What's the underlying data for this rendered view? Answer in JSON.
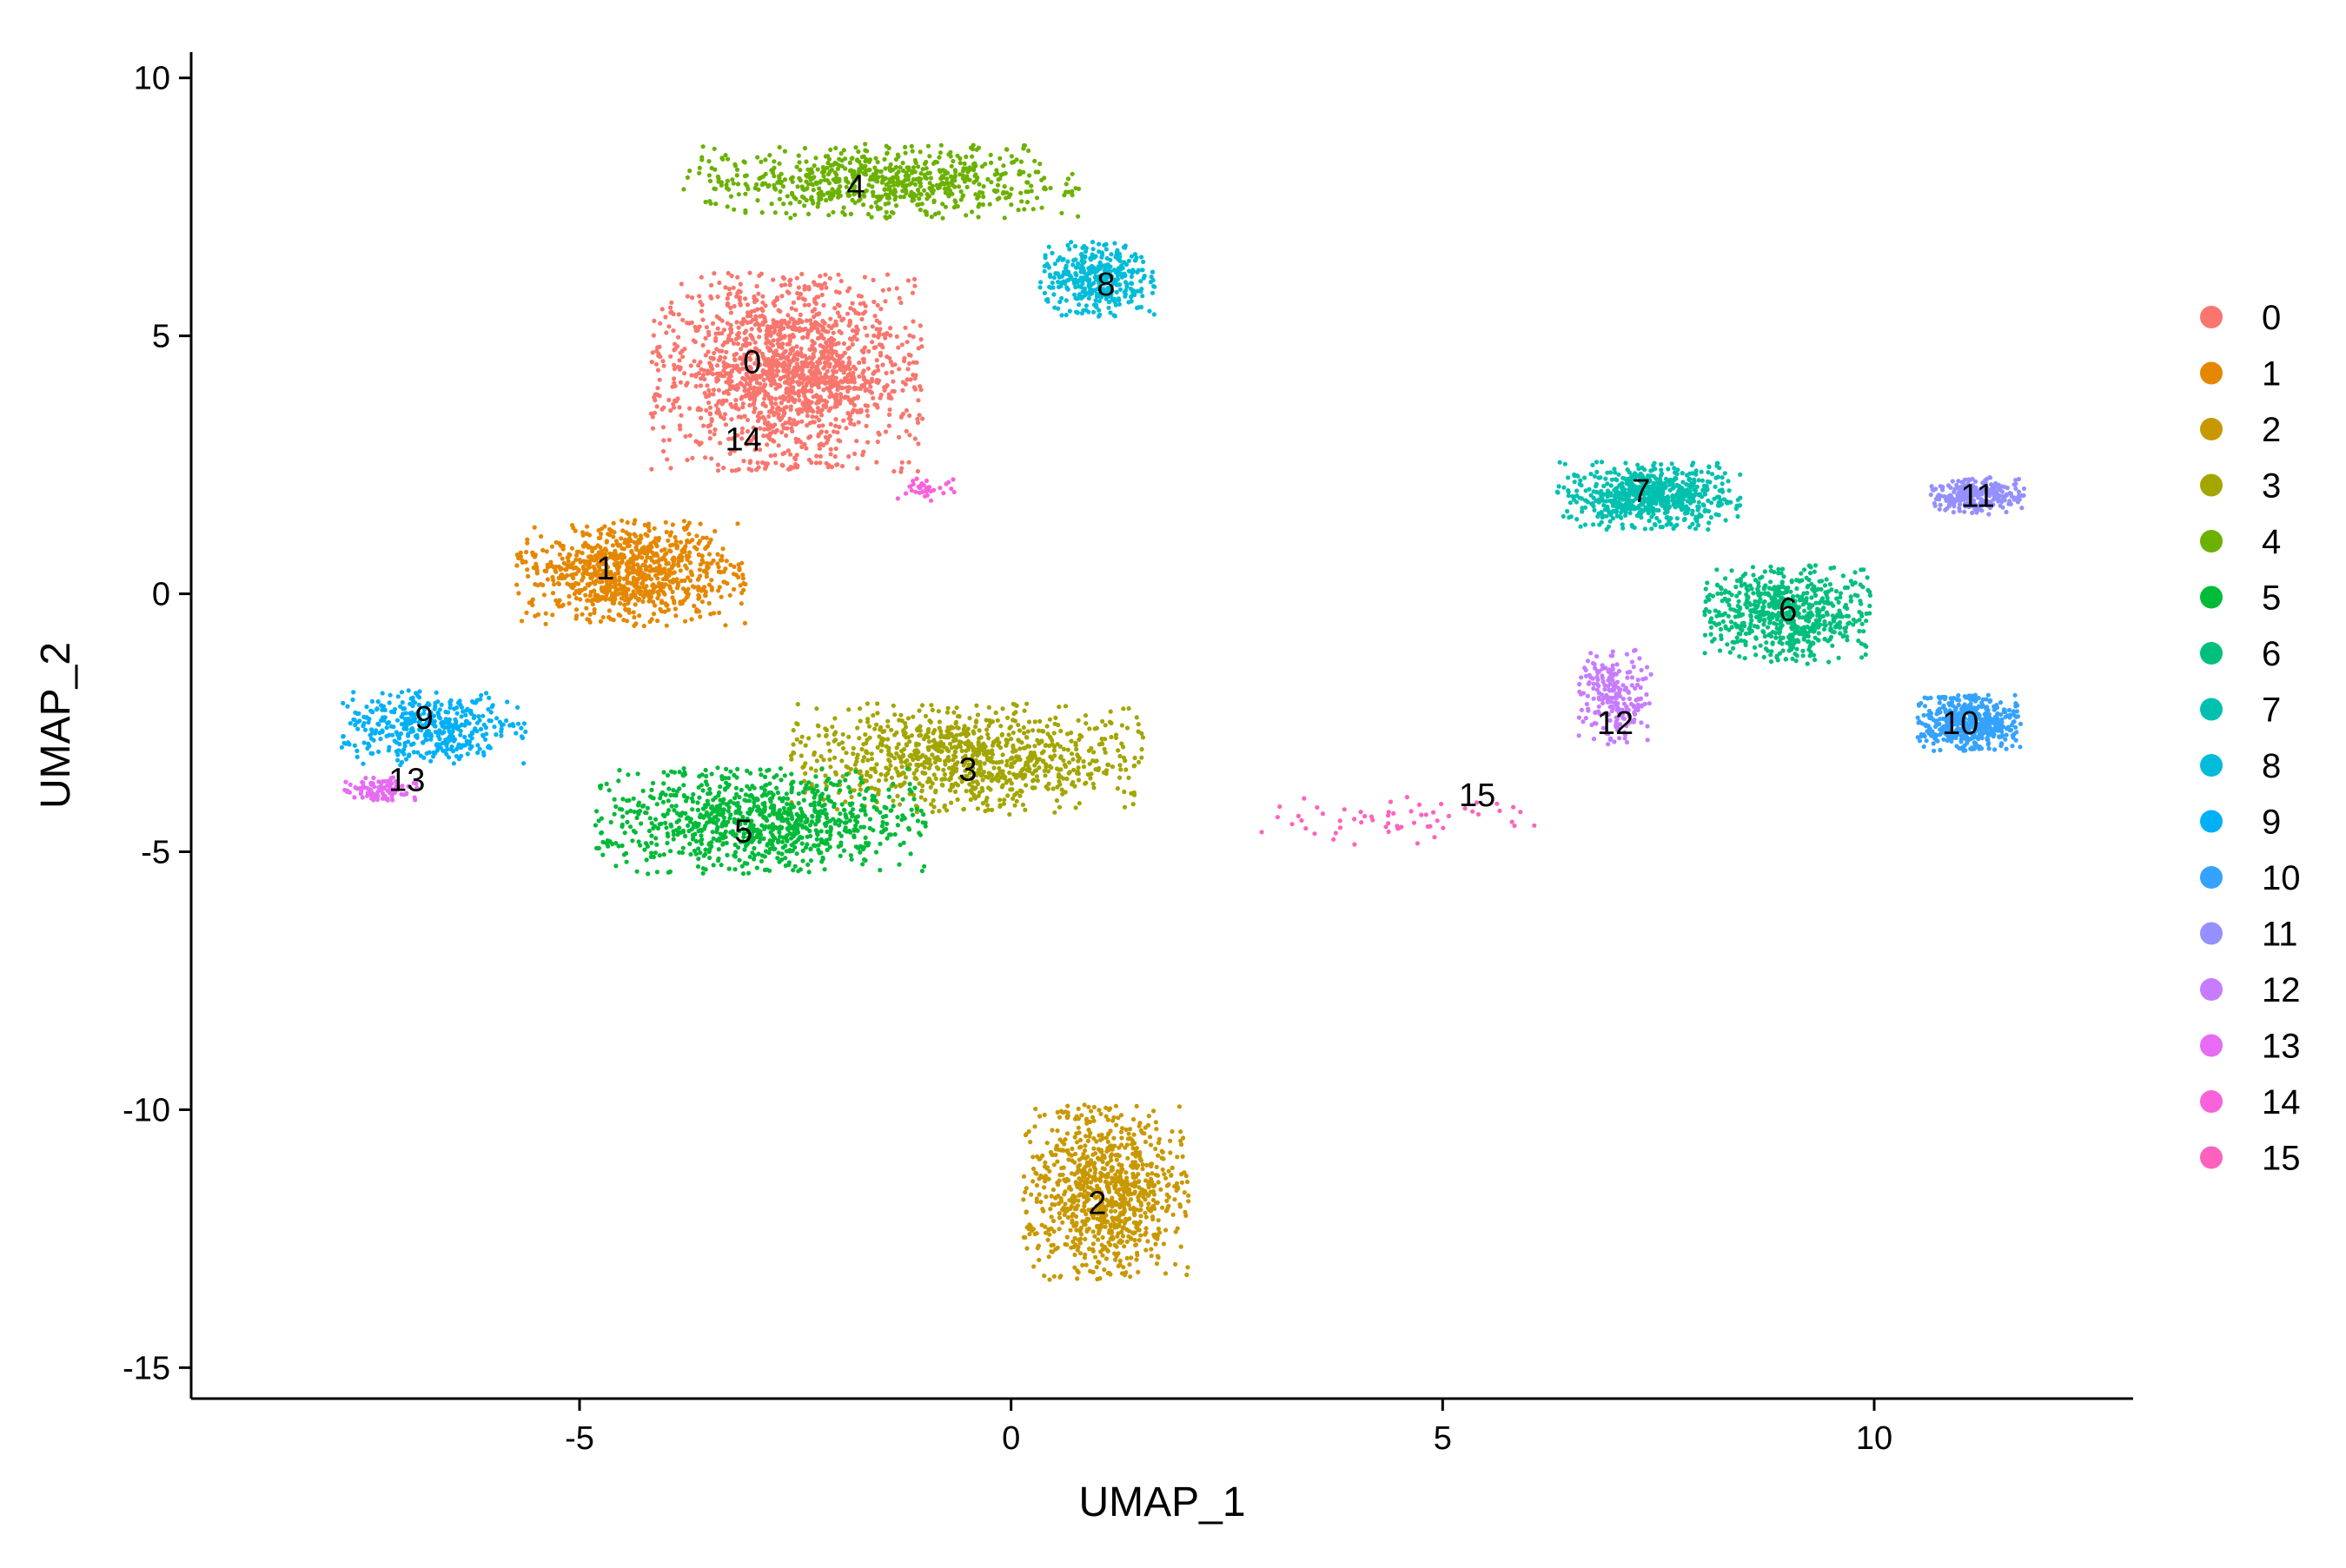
{
  "chart_data": {
    "type": "scatter",
    "title": "",
    "xlabel": "UMAP_1",
    "ylabel": "UMAP_2",
    "xlim": [
      -9.5,
      13.0
    ],
    "ylim": [
      -15.6,
      10.5
    ],
    "x_ticks": [
      -5,
      0,
      5,
      10
    ],
    "x_tick_labels": [
      "-5",
      "0",
      "5",
      "10"
    ],
    "y_ticks": [
      -15,
      -10,
      -5,
      0,
      5,
      10
    ],
    "y_tick_labels": [
      "-15",
      "-10",
      "-5",
      "0",
      "5",
      "10"
    ],
    "grid": false,
    "legend_position": "right",
    "legend": [
      "0",
      "1",
      "2",
      "3",
      "4",
      "5",
      "6",
      "7",
      "8",
      "9",
      "10",
      "11",
      "12",
      "13",
      "14",
      "15"
    ],
    "series": [
      {
        "name": "0",
        "color": "#F8766D",
        "label_pos": [
          -3.0,
          4.5
        ],
        "center": [
          -2.6,
          4.3
        ],
        "spread": [
          1.3,
          1.6
        ],
        "n": 1600
      },
      {
        "name": "1",
        "color": "#E58700",
        "label_pos": [
          -4.7,
          0.5
        ],
        "center": [
          -4.4,
          0.4
        ],
        "spread": [
          1.1,
          0.85
        ],
        "n": 900
      },
      {
        "name": "2",
        "color": "#C99800",
        "label_pos": [
          1.0,
          -11.8
        ],
        "center": [
          1.1,
          -11.6
        ],
        "spread": [
          0.8,
          1.4
        ],
        "n": 900
      },
      {
        "name": "3",
        "color": "#A3A500",
        "label_pos": [
          -0.5,
          -3.4
        ],
        "center": [
          -0.5,
          -3.2
        ],
        "spread": [
          1.7,
          0.9
        ],
        "n": 950
      },
      {
        "name": "4",
        "color": "#6BB100",
        "label_pos": [
          -1.8,
          7.9
        ],
        "center": [
          -1.5,
          8.0
        ],
        "spread": [
          1.9,
          0.6
        ],
        "n": 700
      },
      {
        "name": "5",
        "color": "#00BA38",
        "label_pos": [
          -3.1,
          -4.6
        ],
        "center": [
          -2.9,
          -4.4
        ],
        "spread": [
          1.6,
          0.85
        ],
        "n": 950
      },
      {
        "name": "6",
        "color": "#00BF7D",
        "label_pos": [
          9.0,
          -0.3
        ],
        "center": [
          9.0,
          -0.4
        ],
        "spread": [
          0.8,
          0.8
        ],
        "n": 650
      },
      {
        "name": "7",
        "color": "#00C0AF",
        "label_pos": [
          7.3,
          2.0
        ],
        "center": [
          7.4,
          1.9
        ],
        "spread": [
          0.9,
          0.55
        ],
        "n": 650
      },
      {
        "name": "8",
        "color": "#00BCD8",
        "label_pos": [
          1.1,
          6.0
        ],
        "center": [
          1.0,
          6.1
        ],
        "spread": [
          0.55,
          0.6
        ],
        "n": 400
      },
      {
        "name": "9",
        "color": "#00B0F6",
        "label_pos": [
          -6.8,
          -2.4
        ],
        "center": [
          -6.7,
          -2.6
        ],
        "spread": [
          0.9,
          0.6
        ],
        "n": 420
      },
      {
        "name": "10",
        "color": "#35A2FF",
        "label_pos": [
          11.0,
          -2.5
        ],
        "center": [
          11.1,
          -2.5
        ],
        "spread": [
          0.5,
          0.45
        ],
        "n": 500
      },
      {
        "name": "11",
        "color": "#9590FF",
        "label_pos": [
          11.2,
          1.9
        ],
        "center": [
          11.2,
          1.9
        ],
        "spread": [
          0.45,
          0.3
        ],
        "n": 260
      },
      {
        "name": "12",
        "color": "#C77CFF",
        "label_pos": [
          7.0,
          -2.5
        ],
        "center": [
          7.0,
          -2.0
        ],
        "spread": [
          0.35,
          0.8
        ],
        "n": 220
      },
      {
        "name": "13",
        "color": "#E76BF3",
        "label_pos": [
          -7.0,
          -3.6
        ],
        "center": [
          -7.3,
          -3.8
        ],
        "spread": [
          0.35,
          0.2
        ],
        "n": 110
      },
      {
        "name": "14",
        "color": "#FA62DB",
        "label_pos": [
          -3.1,
          3.0
        ],
        "center": [
          -1.0,
          2.0
        ],
        "spread": [
          0.3,
          0.2
        ],
        "n": 40
      },
      {
        "name": "15",
        "color": "#FF62BC",
        "label_pos": [
          5.4,
          -3.9
        ],
        "center": [
          4.5,
          -4.4
        ],
        "spread": [
          1.5,
          0.4
        ],
        "n": 60
      }
    ]
  }
}
